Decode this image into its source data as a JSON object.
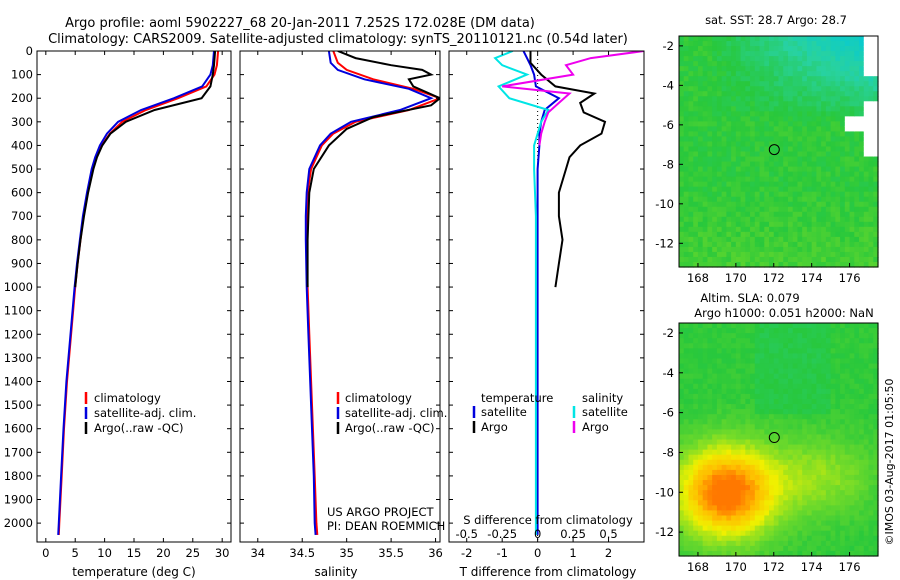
{
  "header": {
    "title_line1": "Argo profile: aoml 5902227_68 20-Jan-2011 7.252S 172.028E (DM data)",
    "title_line2": "Climatology: CARS2009. Satellite-adjusted climatology: synTS_20110121.nc (0.54d later)"
  },
  "colors": {
    "climatology": "#ff0000",
    "satellite": "#0000dd",
    "argo": "#000000",
    "sal_satellite": "#00e5e5",
    "sal_argo": "#ee00ee"
  },
  "credits": {
    "project": "US ARGO PROJECT",
    "pi": "PI: DEAN ROEMMICH",
    "imos": "©IMOS 03-Aug-2017 01:05:50"
  },
  "chart_data": [
    {
      "type": "line",
      "xlabel": "temperature (deg C)",
      "xlim": [
        -1.5,
        31.5
      ],
      "ylim": [
        2080,
        0
      ],
      "xticks": [
        0,
        5,
        10,
        15,
        20,
        25,
        30
      ],
      "yticks": [
        0,
        100,
        200,
        300,
        400,
        500,
        600,
        700,
        800,
        900,
        1000,
        1100,
        1200,
        1300,
        1400,
        1500,
        1600,
        1700,
        1800,
        1900,
        2000
      ],
      "legend": [
        "climatology",
        "satellite-adj. clim.",
        "Argo(..raw -QC)"
      ],
      "depth": [
        0,
        60,
        100,
        150,
        200,
        250,
        300,
        350,
        400,
        450,
        500,
        600,
        700,
        800,
        900,
        1000,
        1200,
        1400,
        1600,
        1800,
        2000,
        2050
      ],
      "series": [
        {
          "name": "climatology",
          "values": [
            29.3,
            29.1,
            28.7,
            27.3,
            22.5,
            17.0,
            13.0,
            10.9,
            9.5,
            8.6,
            8.0,
            7.1,
            6.4,
            5.9,
            5.4,
            5.0,
            4.3,
            3.6,
            3.1,
            2.7,
            2.3,
            2.2
          ]
        },
        {
          "name": "satellite-adj. clim.",
          "values": [
            28.6,
            28.4,
            28.0,
            26.6,
            21.8,
            16.2,
            12.3,
            10.4,
            9.2,
            8.4,
            7.8,
            7.0,
            6.3,
            5.8,
            5.3,
            4.9,
            4.2,
            3.5,
            3.0,
            2.6,
            2.2,
            2.1
          ]
        },
        {
          "name": "Argo(..raw -QC)",
          "values": [
            28.8,
            28.6,
            28.4,
            28.0,
            26.5,
            18.5,
            13.6,
            11.0,
            9.6,
            8.7,
            8.1,
            7.2,
            6.5,
            5.9,
            5.4,
            5.0
          ]
        }
      ]
    },
    {
      "type": "line",
      "xlabel": "salinity",
      "xlim": [
        33.8,
        36.05
      ],
      "ylim": [
        2080,
        0
      ],
      "xticks": [
        34,
        34.5,
        35,
        35.5,
        36
      ],
      "legend": [
        "climatology",
        "satellite-adj. clim.",
        "Argo(..raw -QC)"
      ],
      "depth": [
        0,
        50,
        80,
        120,
        160,
        200,
        250,
        300,
        350,
        400,
        500,
        600,
        700,
        800,
        1000,
        1200,
        1400,
        1600,
        1800,
        2000,
        2050
      ],
      "series": [
        {
          "name": "climatology",
          "values": [
            34.85,
            34.9,
            35.0,
            35.3,
            35.75,
            36.05,
            35.7,
            35.1,
            34.85,
            34.72,
            34.6,
            34.56,
            34.55,
            34.55,
            34.56,
            34.58,
            34.6,
            34.62,
            34.64,
            34.66,
            34.67
          ]
        },
        {
          "name": "satellite-adj. clim.",
          "values": [
            34.8,
            34.82,
            34.9,
            35.2,
            35.7,
            35.95,
            35.6,
            35.05,
            34.82,
            34.7,
            34.58,
            34.55,
            34.54,
            34.54,
            34.55,
            34.57,
            34.59,
            34.61,
            34.63,
            34.64,
            34.65
          ]
        },
        {
          "name": "Argo(..raw -QC)",
          "depth": [
            0,
            30,
            60,
            80,
            100,
            120,
            150,
            200,
            230,
            280,
            330,
            400,
            500,
            600,
            700,
            800,
            900,
            1000
          ],
          "values": [
            34.9,
            35.1,
            35.5,
            35.85,
            35.95,
            35.7,
            35.75,
            36.05,
            35.95,
            35.3,
            35.0,
            34.8,
            34.63,
            34.58,
            34.57,
            34.56,
            34.56,
            34.56
          ]
        }
      ]
    },
    {
      "type": "line",
      "xlabel": "T difference from climatology",
      "xlabel2": "S difference from climatology",
      "xlim": [
        -2.5,
        3.0
      ],
      "ylim": [
        2080,
        0
      ],
      "xticks": [
        -2,
        -1,
        0,
        1,
        2
      ],
      "sticks": [
        -0.5,
        -0.25,
        0,
        0.25,
        0.5
      ],
      "legend_headers": [
        "temperature",
        "salinity"
      ],
      "legend": [
        "satellite",
        "Argo",
        "satellite",
        "Argo"
      ],
      "series": [
        {
          "name": "satellite",
          "depth": [
            0,
            30,
            60,
            100,
            150,
            200,
            250,
            300,
            350,
            400,
            500,
            700,
            900,
            1200,
            1500,
            1800,
            2050
          ],
          "values": [
            -0.4,
            -0.3,
            -0.2,
            -0.1,
            -0.05,
            0.6,
            0.2,
            0.1,
            0.05,
            0.05,
            0.0,
            0.0,
            0.0,
            0.0,
            0.0,
            0.0,
            0.0
          ]
        },
        {
          "name": "Argo",
          "depth": [
            0,
            50,
            100,
            150,
            180,
            220,
            260,
            300,
            350,
            400,
            450,
            500,
            600,
            700,
            800,
            900,
            1000
          ],
          "values": [
            -0.2,
            -0.2,
            0.1,
            0.5,
            1.6,
            1.2,
            1.3,
            1.9,
            1.8,
            1.2,
            0.9,
            0.8,
            0.6,
            0.6,
            0.7,
            0.6,
            0.5
          ]
        },
        {
          "name": "satellite",
          "depth": [
            0,
            30,
            60,
            100,
            150,
            200,
            250,
            300,
            400,
            500,
            700,
            900,
            1200,
            1500,
            1800,
            2050
          ],
          "values": [
            -0.7,
            -1.2,
            -1.0,
            -0.3,
            -1.1,
            -0.8,
            0.3,
            0.1,
            -0.1,
            -0.1,
            -0.05,
            -0.05,
            -0.05,
            -0.05,
            -0.05,
            -0.05
          ]
        },
        {
          "name": "Argo",
          "depth": [
            0,
            30,
            60,
            100,
            150,
            180,
            220,
            260,
            300,
            350,
            400
          ],
          "values": [
            3.0,
            1.5,
            0.8,
            1.0,
            -1.0,
            0.9,
            0.6,
            0.3,
            0.2,
            0.1,
            0.05
          ]
        }
      ]
    },
    {
      "type": "heatmap",
      "title": "sat. SST: 28.7 Argo: 28.7",
      "xlim": [
        167,
        177.5
      ],
      "ylim": [
        -13.2,
        -1.5
      ],
      "xticks": [
        168,
        170,
        172,
        174,
        176
      ],
      "yticks": [
        -2,
        -4,
        -6,
        -8,
        -10,
        -12
      ],
      "marker": [
        172.028,
        -7.252
      ]
    },
    {
      "type": "heatmap",
      "title": "Altim. SLA: 0.079",
      "subtitle": "Argo h1000: 0.051 h2000: NaN",
      "xlim": [
        167,
        177.5
      ],
      "ylim": [
        -13.2,
        -1.5
      ],
      "xticks": [
        168,
        170,
        172,
        174,
        176
      ],
      "yticks": [
        -2,
        -4,
        -6,
        -8,
        -10,
        -12
      ],
      "marker": [
        172.028,
        -7.252
      ]
    }
  ]
}
